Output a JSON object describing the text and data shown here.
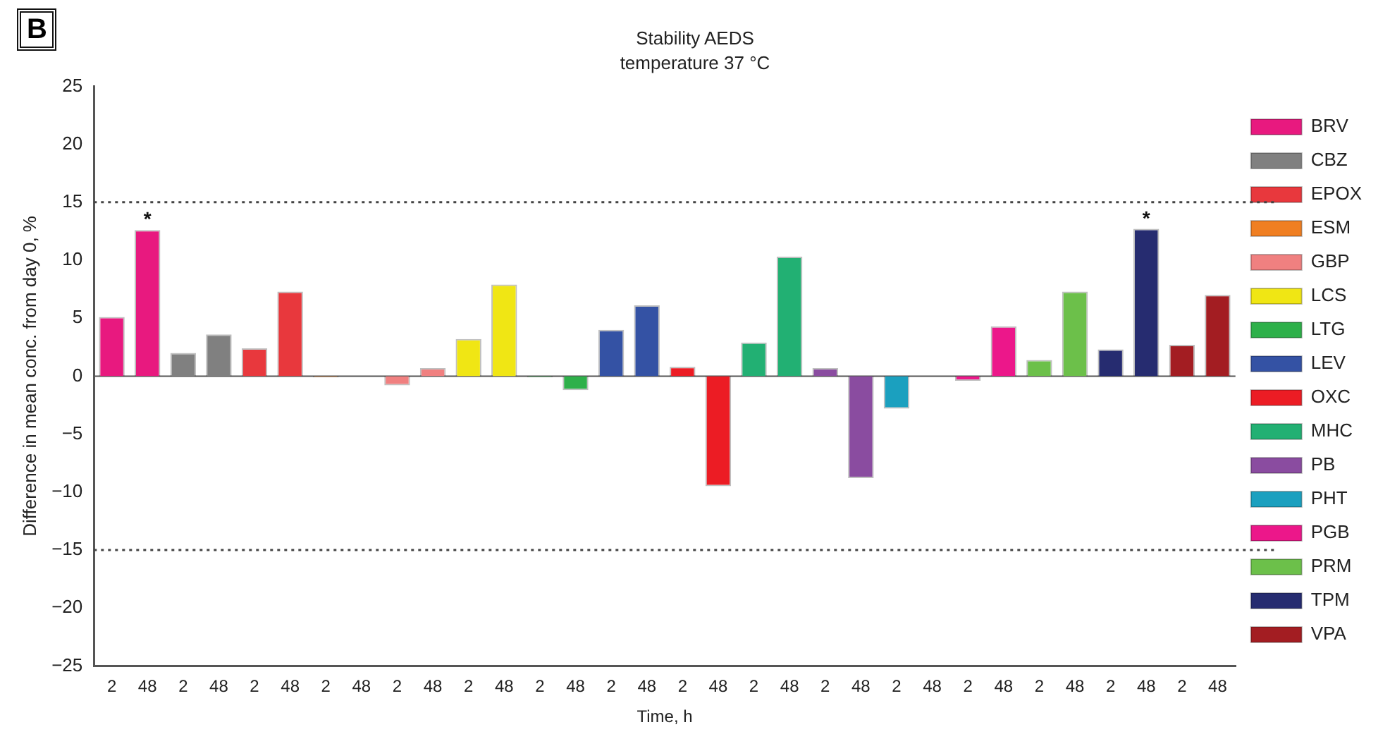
{
  "chart_data": {
    "type": "bar",
    "title": "Stability AEDS",
    "subtitle": "temperature 37 °C",
    "xlabel": "Time, h",
    "ylabel": "Difference in mean conc. from day 0, %",
    "categories": [
      "2",
      "48",
      "2",
      "48",
      "2",
      "48",
      "2",
      "48",
      "2",
      "48",
      "2",
      "48",
      "2",
      "48",
      "2",
      "48",
      "2",
      "48",
      "2",
      "48",
      "2",
      "48",
      "2",
      "48",
      "2",
      "48",
      "2",
      "48",
      "2",
      "48",
      "2",
      "48"
    ],
    "series": [
      {
        "name": "BRV",
        "color": "#e8197f",
        "values": [
          5.1,
          12.6,
          null,
          null,
          null,
          null,
          null,
          null,
          null,
          null,
          null,
          null,
          null,
          null,
          null,
          null,
          null,
          null,
          null,
          null,
          null,
          null,
          null,
          null,
          null,
          null,
          null,
          null,
          null,
          null,
          null,
          null
        ]
      },
      {
        "name": "CBZ",
        "color": "#808080",
        "values": [
          null,
          null,
          2.0,
          3.6,
          null,
          null,
          null,
          null,
          null,
          null,
          null,
          null,
          null,
          null,
          null,
          null,
          null,
          null,
          null,
          null,
          null,
          null,
          null,
          null,
          null,
          null,
          null,
          null,
          null,
          null,
          null,
          null
        ]
      },
      {
        "name": "EPOX",
        "color": "#e8383d",
        "values": [
          null,
          null,
          null,
          null,
          2.4,
          7.3,
          null,
          null,
          null,
          null,
          null,
          null,
          null,
          null,
          null,
          null,
          null,
          null,
          null,
          null,
          null,
          null,
          null,
          null,
          null,
          null,
          null,
          null,
          null,
          null,
          null,
          null
        ]
      },
      {
        "name": "ESM",
        "color": "#f07f22",
        "values": [
          null,
          null,
          null,
          null,
          null,
          null,
          -0.1,
          0,
          null,
          null,
          null,
          null,
          null,
          null,
          null,
          null,
          null,
          null,
          null,
          null,
          null,
          null,
          null,
          null,
          null,
          null,
          null,
          null,
          null,
          null,
          null,
          null
        ]
      },
      {
        "name": "GBP",
        "color": "#f08080",
        "values": [
          null,
          null,
          null,
          null,
          null,
          null,
          null,
          null,
          -0.8,
          0.7,
          null,
          null,
          null,
          null,
          null,
          null,
          null,
          null,
          null,
          null,
          null,
          null,
          null,
          null,
          null,
          null,
          null,
          null,
          null,
          null,
          null,
          null
        ]
      },
      {
        "name": "LCS",
        "color": "#f0e614",
        "values": [
          null,
          null,
          null,
          null,
          null,
          null,
          null,
          null,
          null,
          null,
          3.2,
          7.9,
          null,
          null,
          null,
          null,
          null,
          null,
          null,
          null,
          null,
          null,
          null,
          null,
          null,
          null,
          null,
          null,
          null,
          null,
          null,
          null
        ]
      },
      {
        "name": "LTG",
        "color": "#2eb04a",
        "values": [
          null,
          null,
          null,
          null,
          null,
          null,
          null,
          null,
          null,
          null,
          null,
          null,
          -0.1,
          -1.2,
          null,
          null,
          null,
          null,
          null,
          null,
          null,
          null,
          null,
          null,
          null,
          null,
          null,
          null,
          null,
          null,
          null,
          null
        ]
      },
      {
        "name": "LEV",
        "color": "#3452a4",
        "values": [
          null,
          null,
          null,
          null,
          null,
          null,
          null,
          null,
          null,
          null,
          null,
          null,
          null,
          null,
          4.0,
          6.1,
          null,
          null,
          null,
          null,
          null,
          null,
          null,
          null,
          null,
          null,
          null,
          null,
          null,
          null,
          null,
          null
        ]
      },
      {
        "name": "OXC",
        "color": "#ec1c24",
        "values": [
          null,
          null,
          null,
          null,
          null,
          null,
          null,
          null,
          null,
          null,
          null,
          null,
          null,
          null,
          null,
          null,
          0.8,
          -9.5,
          null,
          null,
          null,
          null,
          null,
          null,
          null,
          null,
          null,
          null,
          null,
          null,
          null,
          null
        ]
      },
      {
        "name": "MHC",
        "color": "#22b073",
        "values": [
          null,
          null,
          null,
          null,
          null,
          null,
          null,
          null,
          null,
          null,
          null,
          null,
          null,
          null,
          null,
          null,
          null,
          null,
          2.9,
          10.3,
          null,
          null,
          null,
          null,
          null,
          null,
          null,
          null,
          null,
          null,
          null,
          null
        ]
      },
      {
        "name": "PB",
        "color": "#8a4ca0",
        "values": [
          null,
          null,
          null,
          null,
          null,
          null,
          null,
          null,
          null,
          null,
          null,
          null,
          null,
          null,
          null,
          null,
          null,
          null,
          null,
          null,
          0.7,
          -8.8,
          null,
          null,
          null,
          null,
          null,
          null,
          null,
          null,
          null,
          null
        ]
      },
      {
        "name": "PHT",
        "color": "#1ba0bf",
        "values": [
          null,
          null,
          null,
          null,
          null,
          null,
          null,
          null,
          null,
          null,
          null,
          null,
          null,
          null,
          null,
          null,
          null,
          null,
          null,
          null,
          null,
          null,
          -2.8,
          0,
          null,
          null,
          null,
          null,
          null,
          null,
          null,
          null
        ]
      },
      {
        "name": "PGB",
        "color": "#ec178a",
        "values": [
          null,
          null,
          null,
          null,
          null,
          null,
          null,
          null,
          null,
          null,
          null,
          null,
          null,
          null,
          null,
          null,
          null,
          null,
          null,
          null,
          null,
          null,
          null,
          null,
          -0.4,
          4.3,
          null,
          null,
          null,
          null,
          null,
          null
        ]
      },
      {
        "name": "PRM",
        "color": "#6cc04a",
        "values": [
          null,
          null,
          null,
          null,
          null,
          null,
          null,
          null,
          null,
          null,
          null,
          null,
          null,
          null,
          null,
          null,
          null,
          null,
          null,
          null,
          null,
          null,
          null,
          null,
          null,
          null,
          1.4,
          7.3,
          null,
          null,
          null,
          null
        ]
      },
      {
        "name": "TPM",
        "color": "#262c70",
        "values": [
          null,
          null,
          null,
          null,
          null,
          null,
          null,
          null,
          null,
          null,
          null,
          null,
          null,
          null,
          null,
          null,
          null,
          null,
          null,
          null,
          null,
          null,
          null,
          null,
          null,
          null,
          null,
          null,
          2.3,
          12.7,
          null,
          null
        ]
      },
      {
        "name": "VPA",
        "color": "#a31d22",
        "values": [
          null,
          null,
          null,
          null,
          null,
          null,
          null,
          null,
          null,
          null,
          null,
          null,
          null,
          null,
          null,
          null,
          null,
          null,
          null,
          null,
          null,
          null,
          null,
          null,
          null,
          null,
          null,
          null,
          null,
          null,
          2.7,
          7.0
        ]
      }
    ],
    "ylim": [
      -25,
      25
    ],
    "yticks": [
      {
        "value": -25,
        "label": "−25"
      },
      {
        "value": -20,
        "label": "−20"
      },
      {
        "value": -15,
        "label": "−15"
      },
      {
        "value": -10,
        "label": "−10"
      },
      {
        "value": -5,
        "label": "−5"
      },
      0,
      5,
      10,
      15,
      20,
      25
    ],
    "ref_lines": [
      {
        "axis": "y",
        "value": 15,
        "line_style": "dotted"
      },
      {
        "axis": "y",
        "value": -15,
        "line_style": "dotted"
      }
    ],
    "annotations": [
      "B",
      {
        "text": "*",
        "x": "48",
        "y": 12.6
      },
      {
        "text": "*",
        "y": 12.7
      }
    ],
    "grid": false,
    "legend": "right"
  }
}
